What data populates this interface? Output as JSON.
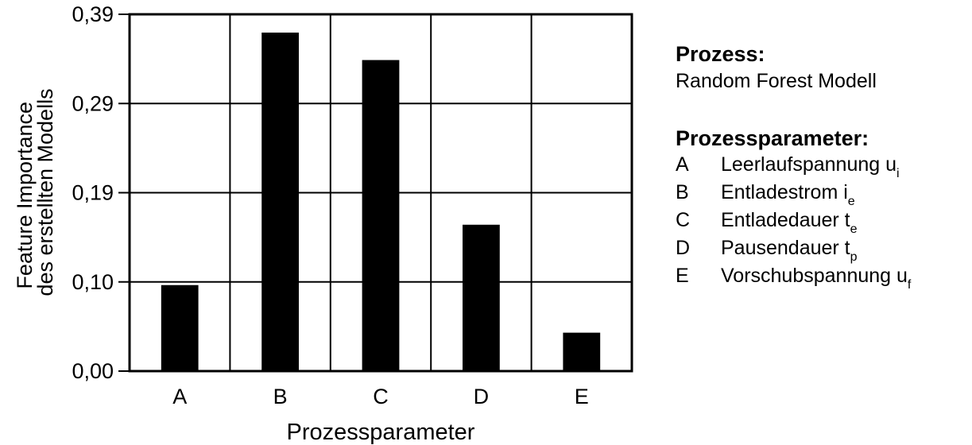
{
  "chart_data": {
    "type": "bar",
    "categories": [
      "A",
      "B",
      "C",
      "D",
      "E"
    ],
    "values": [
      0.094,
      0.37,
      0.34,
      0.16,
      0.042
    ],
    "xlabel": "Prozessparameter",
    "ylabel_lines": [
      "Feature Importance",
      "des erstellten Modells"
    ],
    "yticks": [
      "0,00",
      "0,10",
      "0,19",
      "0,29",
      "0,39"
    ],
    "ylim": [
      0,
      0.39
    ],
    "grid": true,
    "bar_color": "#000000"
  },
  "legend": {
    "process_heading": "Prozess:",
    "process_value": "Random Forest Modell",
    "params_heading": "Prozessparameter:",
    "items": [
      {
        "key": "A",
        "label": "Leerlaufspannung u",
        "sub": "i"
      },
      {
        "key": "B",
        "label": "Entladestrom i",
        "sub": "e"
      },
      {
        "key": "C",
        "label": "Entladedauer t",
        "sub": "e"
      },
      {
        "key": "D",
        "label": "Pausendauer t",
        "sub": "p"
      },
      {
        "key": "E",
        "label": "Vorschubspannung u",
        "sub": "f"
      }
    ]
  }
}
